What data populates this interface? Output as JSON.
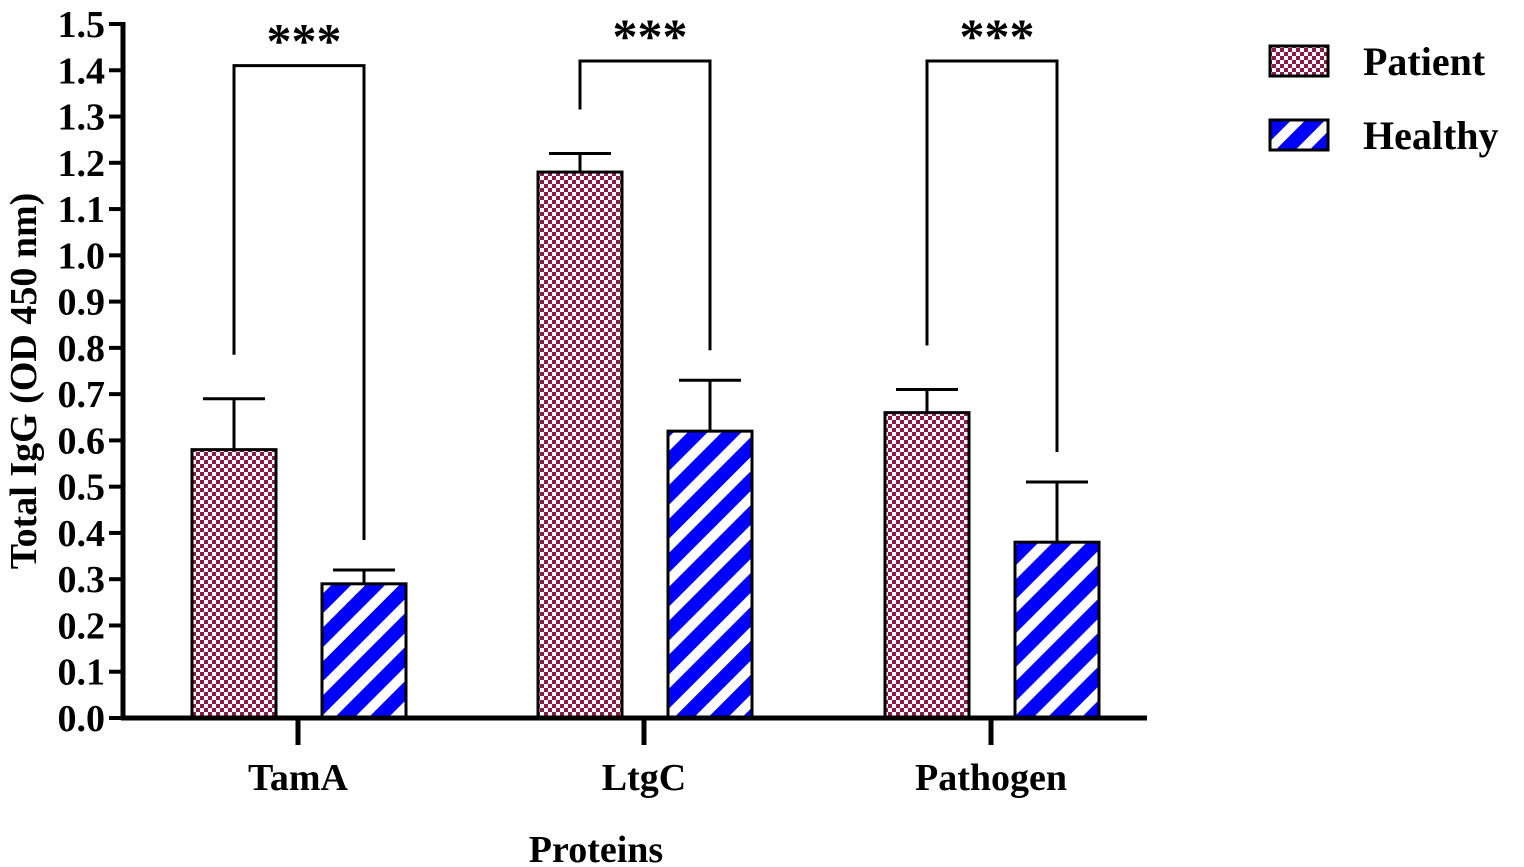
{
  "chart_data": {
    "type": "bar",
    "title": "",
    "xlabel": "Proteins",
    "ylabel": "Total IgG (OD 450 nm)",
    "ylim": [
      0,
      1.5
    ],
    "yticks": [
      "0.0",
      "0.1",
      "0.2",
      "0.3",
      "0.4",
      "0.5",
      "0.6",
      "0.7",
      "0.8",
      "0.9",
      "1.0",
      "1.1",
      "1.2",
      "1.3",
      "1.4",
      "1.5"
    ],
    "categories": [
      "TamA",
      "LtgC",
      "Pathogen"
    ],
    "series": [
      {
        "name": "Patient",
        "values": [
          0.58,
          1.18,
          0.66
        ],
        "error": [
          0.11,
          0.04,
          0.05
        ],
        "color": "#8b1a4a",
        "pattern": "checker"
      },
      {
        "name": "Healthy",
        "values": [
          0.29,
          0.62,
          0.38
        ],
        "error": [
          0.03,
          0.11,
          0.13
        ],
        "color": "#0000ff",
        "pattern": "diagonal-stripes"
      }
    ],
    "significance": [
      "***",
      "***",
      "***"
    ],
    "legend_position": "top-right",
    "grid": false
  }
}
